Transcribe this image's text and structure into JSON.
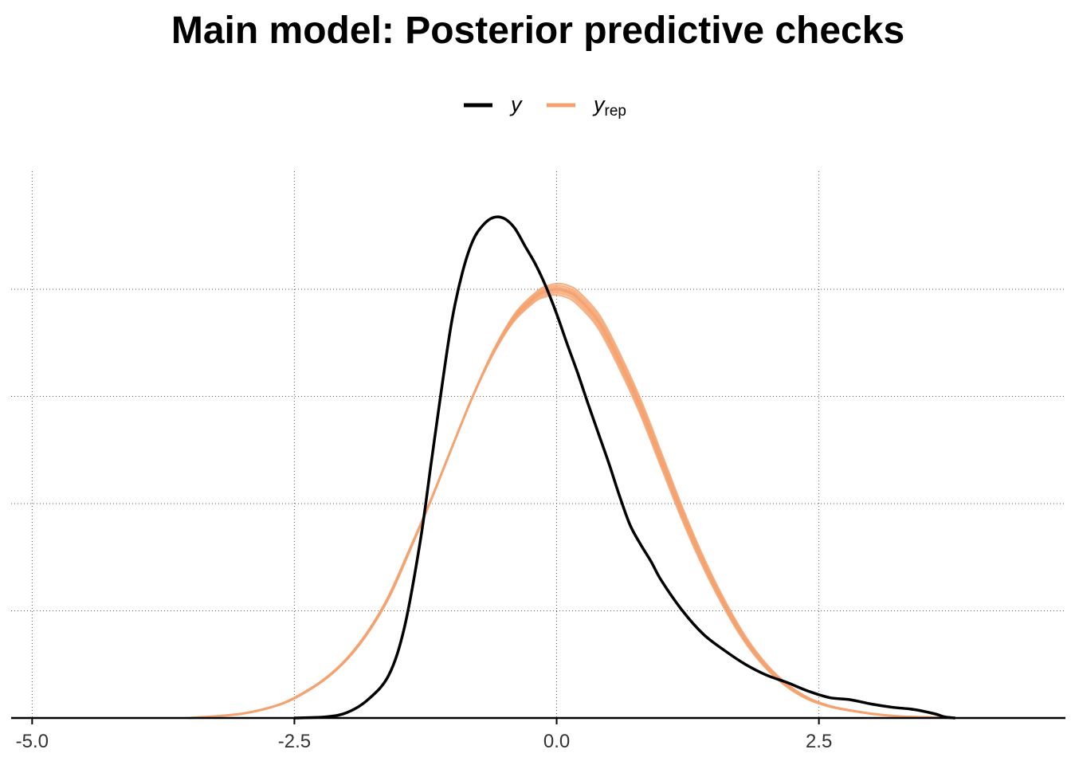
{
  "chart_data": {
    "type": "line",
    "title": "Main model: Posterior predictive checks",
    "xlabel": "",
    "ylabel": "",
    "xlim": [
      -5.2,
      4.85
    ],
    "ylim": [
      0,
      0.51
    ],
    "x_ticks": [
      -5.0,
      -2.5,
      0.0,
      2.5
    ],
    "x_tick_labels": [
      "-5.0",
      "-2.5",
      "0.0",
      "2.5"
    ],
    "y_gridlines": [
      0.1,
      0.2,
      0.3,
      0.4
    ],
    "grid": "dotted",
    "legend": {
      "placement": "top-center",
      "entries": [
        {
          "label": "y",
          "subscript": "",
          "color": "#000000"
        },
        {
          "label": "y",
          "subscript": "rep",
          "color": "#f4a370"
        }
      ]
    },
    "series": [
      {
        "label": "y",
        "color": "#000000",
        "x": [
          -2.5,
          -2.2,
          -2.0,
          -1.8,
          -1.6,
          -1.45,
          -1.3,
          -1.2,
          -1.1,
          -1.0,
          -0.9,
          -0.8,
          -0.7,
          -0.6,
          -0.5,
          -0.4,
          -0.3,
          -0.2,
          -0.1,
          0.0,
          0.1,
          0.2,
          0.3,
          0.4,
          0.5,
          0.6,
          0.7,
          0.8,
          0.9,
          1.0,
          1.2,
          1.4,
          1.6,
          1.8,
          2.0,
          2.2,
          2.4,
          2.6,
          2.8,
          3.0,
          3.2,
          3.4,
          3.6,
          3.7,
          3.8
        ],
        "y": [
          0.0,
          0.001,
          0.005,
          0.017,
          0.04,
          0.085,
          0.165,
          0.235,
          0.305,
          0.37,
          0.415,
          0.445,
          0.46,
          0.467,
          0.466,
          0.457,
          0.44,
          0.423,
          0.402,
          0.377,
          0.349,
          0.322,
          0.293,
          0.265,
          0.237,
          0.207,
          0.18,
          0.162,
          0.146,
          0.128,
          0.1,
          0.078,
          0.063,
          0.05,
          0.04,
          0.033,
          0.025,
          0.019,
          0.017,
          0.013,
          0.01,
          0.008,
          0.004,
          0.001,
          0.0
        ]
      },
      {
        "label": "y_rep",
        "color": "#f4a370",
        "x": [
          -3.5,
          -3.2,
          -3.0,
          -2.8,
          -2.6,
          -2.4,
          -2.2,
          -2.0,
          -1.8,
          -1.6,
          -1.4,
          -1.2,
          -1.0,
          -0.8,
          -0.6,
          -0.4,
          -0.2,
          -0.1,
          0.0,
          0.1,
          0.2,
          0.4,
          0.6,
          0.8,
          1.0,
          1.2,
          1.4,
          1.6,
          1.8,
          2.0,
          2.2,
          2.4,
          2.6,
          2.8,
          3.0,
          3.2,
          3.4,
          3.6,
          3.8
        ],
        "y": [
          0.0,
          0.002,
          0.004,
          0.008,
          0.014,
          0.024,
          0.037,
          0.055,
          0.08,
          0.113,
          0.157,
          0.203,
          0.252,
          0.3,
          0.342,
          0.374,
          0.393,
          0.398,
          0.4,
          0.398,
          0.392,
          0.37,
          0.333,
          0.29,
          0.24,
          0.19,
          0.145,
          0.106,
          0.073,
          0.048,
          0.03,
          0.018,
          0.011,
          0.007,
          0.004,
          0.002,
          0.001,
          0.0005,
          0.0
        ]
      }
    ]
  }
}
